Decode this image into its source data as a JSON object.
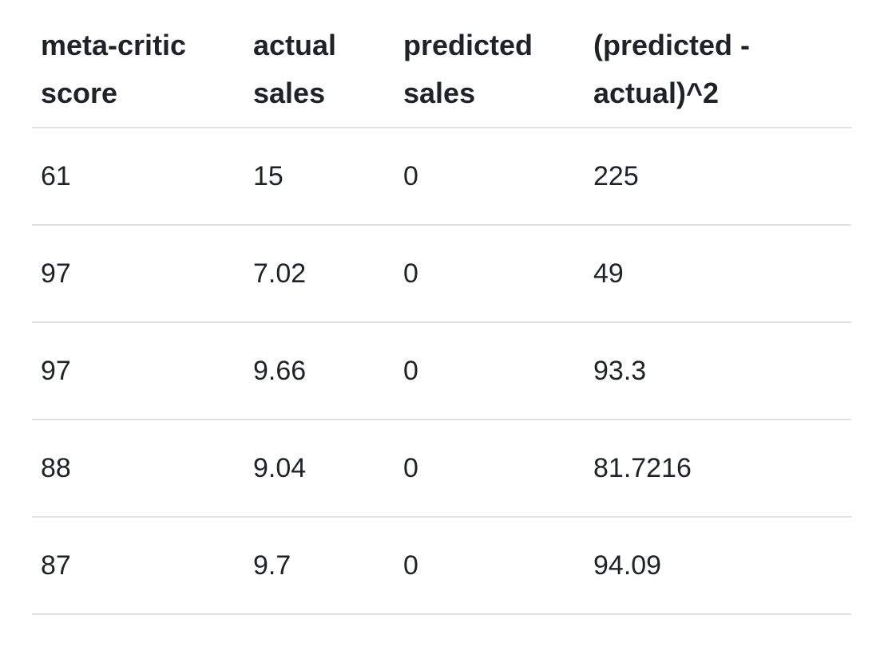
{
  "table": {
    "headers": [
      "meta-critic score",
      "actual sales",
      "predicted sales",
      "(predicted - actual)^2"
    ],
    "rows": [
      [
        "61",
        "15",
        "0",
        "225"
      ],
      [
        "97",
        "7.02",
        "0",
        "49"
      ],
      [
        "97",
        "9.66",
        "0",
        "93.3"
      ],
      [
        "88",
        "9.04",
        "0",
        "81.7216"
      ],
      [
        "87",
        "9.7",
        "0",
        "94.09"
      ]
    ]
  }
}
